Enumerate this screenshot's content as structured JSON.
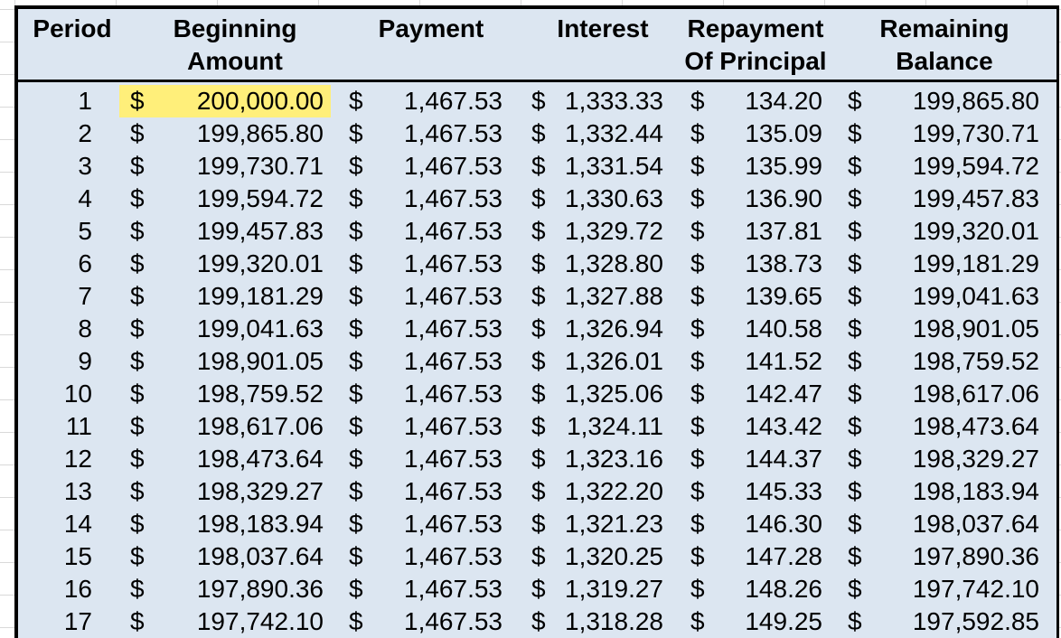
{
  "headers": {
    "period": [
      "",
      "Period"
    ],
    "beginning_amount": [
      "Beginning",
      "Amount"
    ],
    "payment": [
      "",
      "Payment"
    ],
    "interest": [
      "",
      "Interest"
    ],
    "repayment_of_principal": [
      "Repayment",
      "Of Principal"
    ],
    "remaining_balance": [
      "Remaining",
      "Balance"
    ]
  },
  "currency_symbol": "$",
  "highlight_color": "#ffef7a",
  "rows": [
    {
      "period": "1",
      "beginning": "200,000.00",
      "payment": "1,467.53",
      "interest": "1,333.33",
      "principal": "134.20",
      "balance": "199,865.80"
    },
    {
      "period": "2",
      "beginning": "199,865.80",
      "payment": "1,467.53",
      "interest": "1,332.44",
      "principal": "135.09",
      "balance": "199,730.71"
    },
    {
      "period": "3",
      "beginning": "199,730.71",
      "payment": "1,467.53",
      "interest": "1,331.54",
      "principal": "135.99",
      "balance": "199,594.72"
    },
    {
      "period": "4",
      "beginning": "199,594.72",
      "payment": "1,467.53",
      "interest": "1,330.63",
      "principal": "136.90",
      "balance": "199,457.83"
    },
    {
      "period": "5",
      "beginning": "199,457.83",
      "payment": "1,467.53",
      "interest": "1,329.72",
      "principal": "137.81",
      "balance": "199,320.01"
    },
    {
      "period": "6",
      "beginning": "199,320.01",
      "payment": "1,467.53",
      "interest": "1,328.80",
      "principal": "138.73",
      "balance": "199,181.29"
    },
    {
      "period": "7",
      "beginning": "199,181.29",
      "payment": "1,467.53",
      "interest": "1,327.88",
      "principal": "139.65",
      "balance": "199,041.63"
    },
    {
      "period": "8",
      "beginning": "199,041.63",
      "payment": "1,467.53",
      "interest": "1,326.94",
      "principal": "140.58",
      "balance": "198,901.05"
    },
    {
      "period": "9",
      "beginning": "198,901.05",
      "payment": "1,467.53",
      "interest": "1,326.01",
      "principal": "141.52",
      "balance": "198,759.52"
    },
    {
      "period": "10",
      "beginning": "198,759.52",
      "payment": "1,467.53",
      "interest": "1,325.06",
      "principal": "142.47",
      "balance": "198,617.06"
    },
    {
      "period": "11",
      "beginning": "198,617.06",
      "payment": "1,467.53",
      "interest": "1,324.11",
      "principal": "143.42",
      "balance": "198,473.64"
    },
    {
      "period": "12",
      "beginning": "198,473.64",
      "payment": "1,467.53",
      "interest": "1,323.16",
      "principal": "144.37",
      "balance": "198,329.27"
    },
    {
      "period": "13",
      "beginning": "198,329.27",
      "payment": "1,467.53",
      "interest": "1,322.20",
      "principal": "145.33",
      "balance": "198,183.94"
    },
    {
      "period": "14",
      "beginning": "198,183.94",
      "payment": "1,467.53",
      "interest": "1,321.23",
      "principal": "146.30",
      "balance": "198,037.64"
    },
    {
      "period": "15",
      "beginning": "198,037.64",
      "payment": "1,467.53",
      "interest": "1,320.25",
      "principal": "147.28",
      "balance": "197,890.36"
    },
    {
      "period": "16",
      "beginning": "197,890.36",
      "payment": "1,467.53",
      "interest": "1,319.27",
      "principal": "148.26",
      "balance": "197,742.10"
    },
    {
      "period": "17",
      "beginning": "197,742.10",
      "payment": "1,467.53",
      "interest": "1,318.28",
      "principal": "149.25",
      "balance": "197,592.85"
    }
  ]
}
